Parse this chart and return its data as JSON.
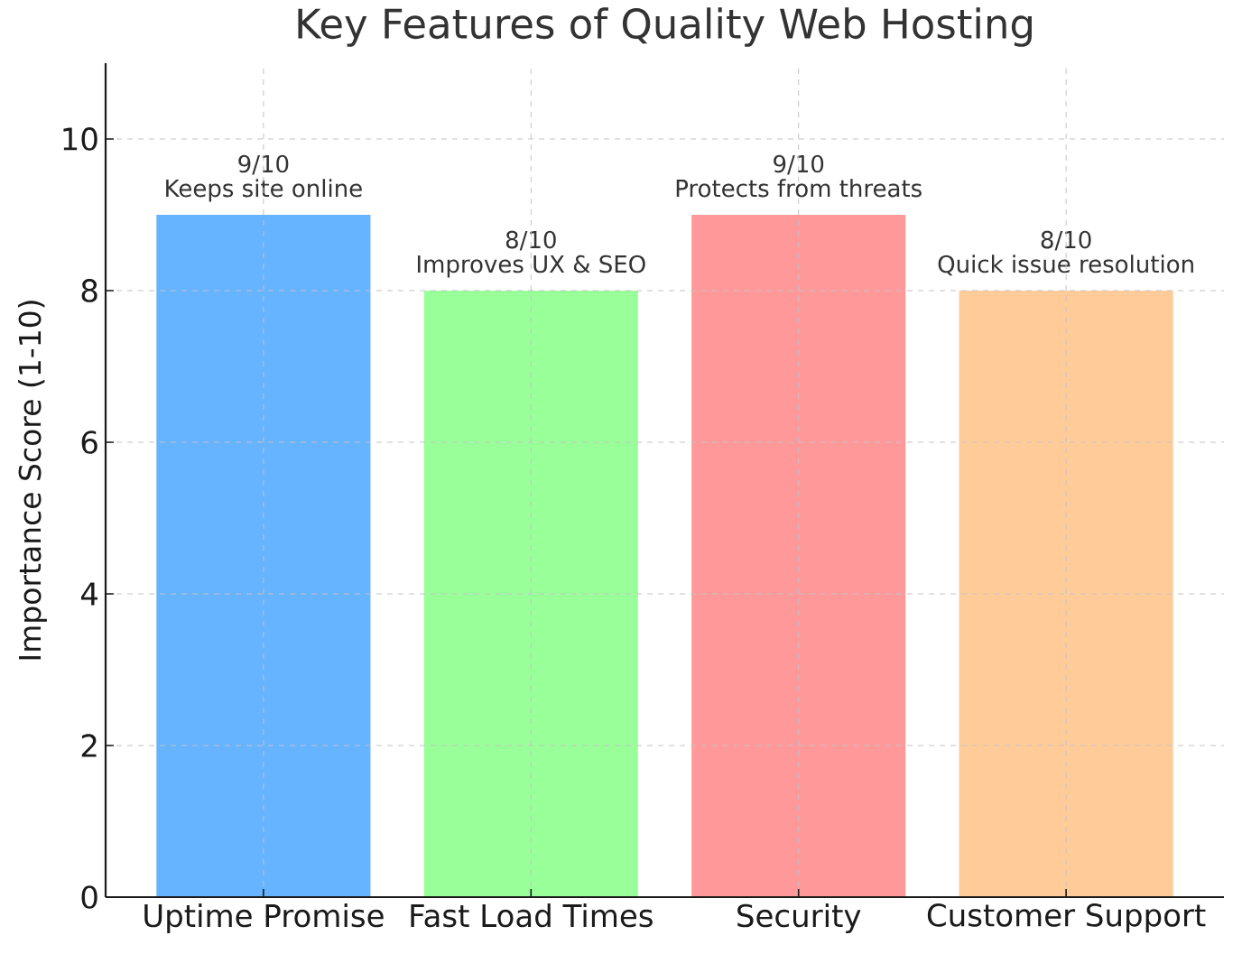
{
  "chart_data": {
    "type": "bar",
    "title": "Key Features of Quality Web Hosting",
    "ylabel": "Importance Score (1-10)",
    "categories": [
      "Uptime Promise",
      "Fast Load Times",
      "Security",
      "Customer Support"
    ],
    "values": [
      9,
      8,
      9,
      8
    ],
    "colors": [
      "#66b3ff",
      "#99ff99",
      "#ff9999",
      "#ffcc99"
    ],
    "ylim": [
      0,
      11
    ],
    "yticks": [
      0,
      2,
      4,
      6,
      8,
      10
    ],
    "grid": true,
    "annotations": [
      {
        "text": "9/10",
        "x": "Uptime Promise",
        "y": 9
      },
      {
        "text": "Keeps site online",
        "x": "Uptime Promise",
        "y": 9
      },
      {
        "text": "8/10",
        "x": "Fast Load Times",
        "y": 8
      },
      {
        "text": "Improves UX & SEO",
        "x": "Fast Load Times",
        "y": 8
      },
      {
        "text": "9/10",
        "x": "Security",
        "y": 9
      },
      {
        "text": "Protects from threats",
        "x": "Security",
        "y": 9
      },
      {
        "text": "8/10",
        "x": "Customer Support",
        "y": 8
      },
      {
        "text": "Quick issue resolution",
        "x": "Customer Support",
        "y": 8
      }
    ]
  }
}
